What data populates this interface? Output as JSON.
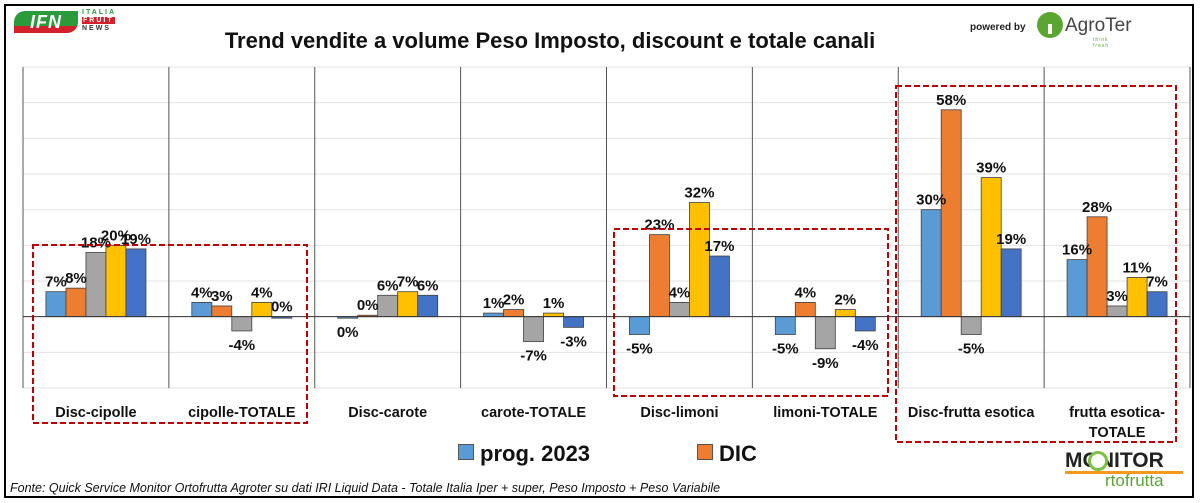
{
  "header": {
    "logo_left": {
      "mark": "IFN",
      "line1": "ITALIA",
      "line2": "FRUIT",
      "line3": "NEWS"
    },
    "powered_by": "powered by",
    "logo_right": {
      "name": "AgroTer",
      "tagline": "think fresh"
    }
  },
  "footer": {
    "source": "Fonte: Quick Service Monitor Ortofrutta Agroter su dati IRI Liquid Data - Totale Italia Iper + super, Peso Imposto + Peso Variabile",
    "logo": {
      "line1": "MONITOR",
      "line2": "rtofrutta"
    }
  },
  "chart_data": {
    "type": "bar",
    "title": "Trend vendite a volume Peso Imposto, discount e totale canali",
    "xlabel": "",
    "ylabel": "",
    "ylim": [
      -20,
      70
    ],
    "y_unit": "%",
    "grid": true,
    "legend_position": "bottom",
    "legend": [
      {
        "name": "prog. 2023",
        "color": "#5b9bd5"
      },
      {
        "name": "DIC",
        "color": "#ed7d31"
      }
    ],
    "categories": [
      "Disc-cipolle",
      "cipolle-TOTALE",
      "Disc-carote",
      "carote-TOTALE",
      "Disc-limoni",
      "limoni-TOTALE",
      "Disc-frutta esotica",
      "frutta esotica-TOTALE"
    ],
    "series": [
      {
        "name": "prog. 2023",
        "color": "#5b9bd5",
        "values": [
          7,
          4,
          -0.4,
          1,
          -5,
          -5,
          30,
          16
        ],
        "labels": [
          "7%",
          "4%",
          "0%",
          "1%",
          "-5%",
          "-5%",
          "30%",
          "16%"
        ]
      },
      {
        "name": "DIC",
        "color": "#ed7d31",
        "values": [
          8,
          3,
          0.4,
          2,
          23,
          4,
          58,
          28
        ],
        "labels": [
          "8%",
          "3%",
          "0%",
          "2%",
          "23%",
          "4%",
          "58%",
          "28%"
        ]
      },
      {
        "name": "",
        "color": "#a5a5a5",
        "values": [
          18,
          -4,
          6,
          -7,
          4,
          -9,
          -5,
          3
        ],
        "labels": [
          "18%",
          "-4%",
          "6%",
          "-7%",
          "4%",
          "-9%",
          "-5%",
          "3%"
        ]
      },
      {
        "name": "",
        "color": "#ffc000",
        "values": [
          20,
          4,
          7,
          1,
          32,
          2,
          39,
          11
        ],
        "labels": [
          "20%",
          "4%",
          "7%",
          "1%",
          "32%",
          "2%",
          "39%",
          "11%"
        ]
      },
      {
        "name": "",
        "color": "#4472c4",
        "values": [
          19,
          0,
          6,
          -3,
          17,
          -4,
          19,
          7
        ],
        "labels": [
          "19%",
          "0%",
          "6%",
          "-3%",
          "17%",
          "-4%",
          "19%",
          "7%"
        ]
      }
    ],
    "highlight_boxes": [
      {
        "from_category": "Disc-cipolle",
        "to_category": "cipolle-TOTALE",
        "color": "#c00000"
      },
      {
        "from_category": "Disc-limoni",
        "to_category": "limoni-TOTALE",
        "color": "#c00000"
      },
      {
        "from_category": "Disc-frutta esotica",
        "to_category": "frutta esotica-TOTALE",
        "color": "#c00000"
      }
    ]
  }
}
